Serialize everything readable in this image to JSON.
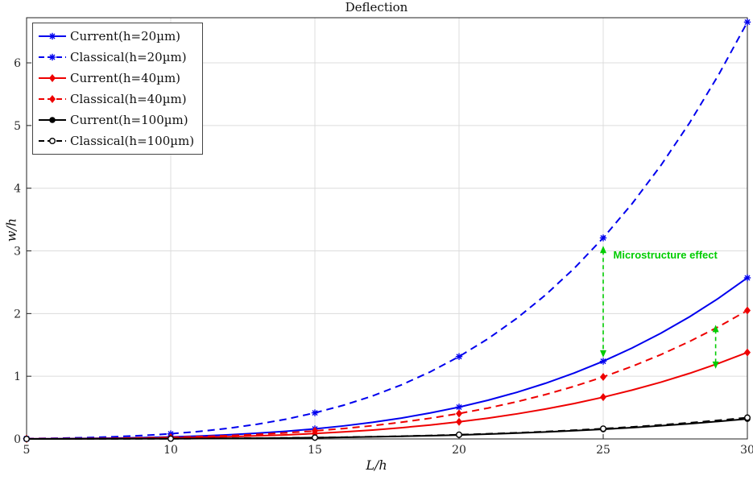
{
  "chart_data": {
    "type": "line",
    "title": "Deflection",
    "xlabel": "L/h",
    "ylabel": "w/h",
    "xlim": [
      5,
      30
    ],
    "ylim": [
      0,
      6.72
    ],
    "xticks": [
      5,
      10,
      15,
      20,
      25,
      30
    ],
    "yticks": [
      0,
      1,
      2,
      3,
      4,
      5,
      6
    ],
    "grid": true,
    "legend_position": "top-left",
    "x": [
      5,
      6,
      7,
      8,
      9,
      10,
      11,
      12,
      13,
      14,
      15,
      16,
      17,
      18,
      19,
      20,
      21,
      22,
      23,
      24,
      25,
      26,
      27,
      28,
      29,
      30
    ],
    "marker_x": [
      5,
      10,
      15,
      20,
      25,
      30
    ],
    "series": [
      {
        "name": "Current(h=20µm)",
        "color": "#0000EE",
        "dash": "solid",
        "marker": "asterisk",
        "values": [
          0.002,
          0.004,
          0.008,
          0.013,
          0.021,
          0.032,
          0.046,
          0.066,
          0.091,
          0.122,
          0.161,
          0.208,
          0.265,
          0.333,
          0.414,
          0.508,
          0.617,
          0.743,
          0.888,
          1.053,
          1.239,
          1.45,
          1.686,
          1.95,
          2.244,
          2.57
        ]
      },
      {
        "name": "Classical(h=20µm)",
        "color": "#0000EE",
        "dash": "dashed",
        "marker": "asterisk",
        "values": [
          0.005,
          0.011,
          0.02,
          0.034,
          0.054,
          0.082,
          0.12,
          0.17,
          0.234,
          0.315,
          0.416,
          0.538,
          0.686,
          0.862,
          1.07,
          1.314,
          1.597,
          1.923,
          2.297,
          2.724,
          3.207,
          3.752,
          4.363,
          5.046,
          5.807,
          6.65
        ]
      },
      {
        "name": "Current(h=40µm)",
        "color": "#EE0000",
        "dash": "solid",
        "marker": "diamond",
        "values": [
          0.001,
          0.002,
          0.004,
          0.007,
          0.011,
          0.017,
          0.025,
          0.035,
          0.049,
          0.065,
          0.086,
          0.112,
          0.142,
          0.179,
          0.222,
          0.273,
          0.331,
          0.399,
          0.477,
          0.565,
          0.666,
          0.779,
          0.905,
          1.047,
          1.205,
          1.38
        ]
      },
      {
        "name": "Classical(h=40µm)",
        "color": "#EE0000",
        "dash": "dashed",
        "marker": "diamond",
        "values": [
          0.002,
          0.003,
          0.006,
          0.01,
          0.017,
          0.025,
          0.037,
          0.052,
          0.072,
          0.097,
          0.128,
          0.166,
          0.211,
          0.266,
          0.33,
          0.405,
          0.492,
          0.593,
          0.708,
          0.84,
          0.989,
          1.157,
          1.345,
          1.556,
          1.79,
          2.05
        ]
      },
      {
        "name": "Current(h=100µm)",
        "color": "#000000",
        "dash": "solid",
        "marker": "circle-filled",
        "values": [
          0.0002,
          0.0005,
          0.0009,
          0.0016,
          0.0026,
          0.004,
          0.0058,
          0.0082,
          0.0113,
          0.0152,
          0.02,
          0.0259,
          0.033,
          0.0415,
          0.0515,
          0.0632,
          0.0768,
          0.0925,
          0.1106,
          0.1311,
          0.1543,
          0.1805,
          0.21,
          0.2428,
          0.2794,
          0.32
        ]
      },
      {
        "name": "Classical(h=100µm)",
        "color": "#000000",
        "dash": "dashed",
        "marker": "circle-open",
        "values": [
          0.0003,
          0.0005,
          0.001,
          0.0017,
          0.0028,
          0.0042,
          0.0061,
          0.0087,
          0.012,
          0.0161,
          0.0213,
          0.0275,
          0.0351,
          0.0441,
          0.0547,
          0.0672,
          0.0816,
          0.0983,
          0.1175,
          0.1393,
          0.164,
          0.1918,
          0.2231,
          0.258,
          0.2969,
          0.34
        ]
      }
    ],
    "annotations": {
      "label": {
        "text": "Microstructure effect",
        "color": "#00CC00",
        "x": 25.35,
        "y": 2.88
      },
      "arrows": [
        {
          "x": 25,
          "y1": 1.3,
          "y2": 3.08,
          "color": "#00CC00"
        },
        {
          "x": 28.9,
          "y1": 1.12,
          "y2": 1.82,
          "color": "#00CC00"
        }
      ]
    }
  }
}
